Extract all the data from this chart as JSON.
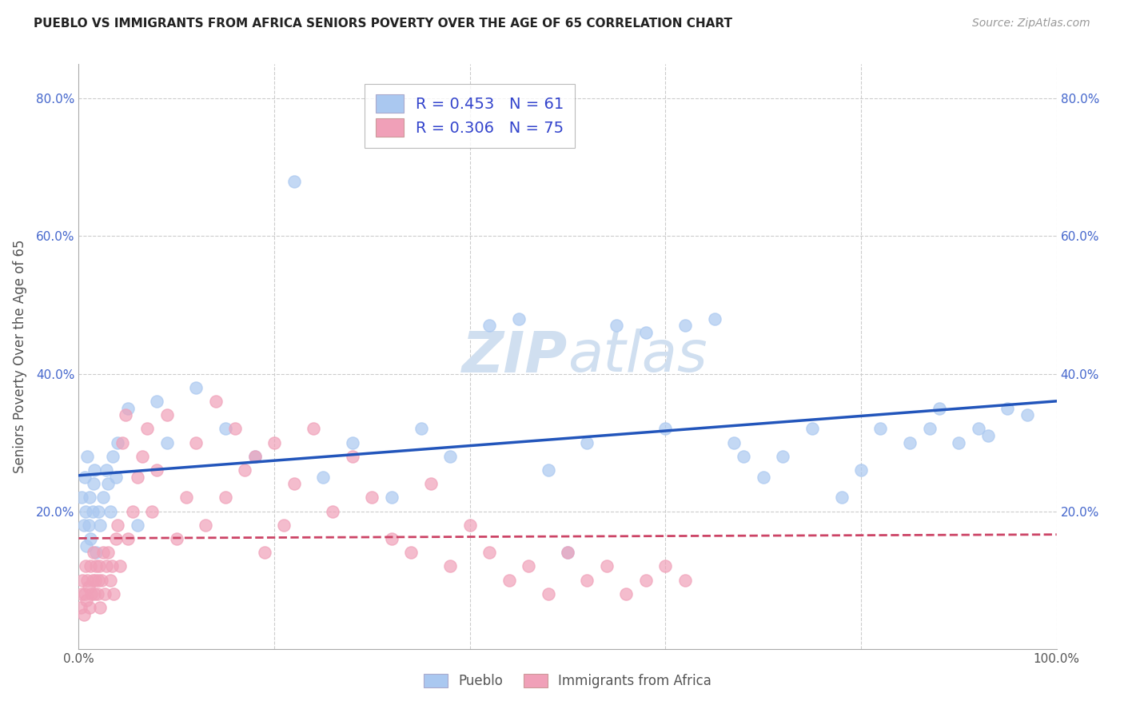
{
  "title": "PUEBLO VS IMMIGRANTS FROM AFRICA SENIORS POVERTY OVER THE AGE OF 65 CORRELATION CHART",
  "source": "Source: ZipAtlas.com",
  "ylabel": "Seniors Poverty Over the Age of 65",
  "xlim": [
    0,
    1.0
  ],
  "ylim": [
    0,
    0.85
  ],
  "series1_color": "#aac8f0",
  "series2_color": "#f0a0b8",
  "series1_name": "Pueblo",
  "series2_name": "Immigrants from Africa",
  "series1_R": 0.453,
  "series1_N": 61,
  "series2_R": 0.306,
  "series2_N": 75,
  "series1_line_color": "#2255bb",
  "series2_line_color": "#cc4466",
  "background_color": "#ffffff",
  "grid_color": "#cccccc",
  "title_color": "#222222",
  "legend_text_color": "#3344cc",
  "tick_color": "#4466cc",
  "watermark_color": "#d0dff0",
  "series1_x": [
    0.003,
    0.005,
    0.006,
    0.007,
    0.008,
    0.009,
    0.01,
    0.011,
    0.012,
    0.014,
    0.015,
    0.016,
    0.018,
    0.02,
    0.022,
    0.025,
    0.028,
    0.03,
    0.032,
    0.035,
    0.038,
    0.04,
    0.05,
    0.06,
    0.08,
    0.09,
    0.12,
    0.15,
    0.18,
    0.22,
    0.25,
    0.28,
    0.32,
    0.35,
    0.38,
    0.42,
    0.45,
    0.48,
    0.5,
    0.52,
    0.55,
    0.58,
    0.6,
    0.62,
    0.65,
    0.67,
    0.68,
    0.7,
    0.72,
    0.75,
    0.78,
    0.8,
    0.82,
    0.85,
    0.87,
    0.88,
    0.9,
    0.92,
    0.93,
    0.95,
    0.97
  ],
  "series1_y": [
    0.22,
    0.18,
    0.25,
    0.2,
    0.15,
    0.28,
    0.18,
    0.22,
    0.16,
    0.2,
    0.24,
    0.26,
    0.14,
    0.2,
    0.18,
    0.22,
    0.26,
    0.24,
    0.2,
    0.28,
    0.25,
    0.3,
    0.35,
    0.18,
    0.36,
    0.3,
    0.38,
    0.32,
    0.28,
    0.68,
    0.25,
    0.3,
    0.22,
    0.32,
    0.28,
    0.47,
    0.48,
    0.26,
    0.14,
    0.3,
    0.47,
    0.46,
    0.32,
    0.47,
    0.48,
    0.3,
    0.28,
    0.25,
    0.28,
    0.32,
    0.22,
    0.26,
    0.32,
    0.3,
    0.32,
    0.35,
    0.3,
    0.32,
    0.31,
    0.35,
    0.34
  ],
  "series2_x": [
    0.002,
    0.003,
    0.004,
    0.005,
    0.006,
    0.007,
    0.008,
    0.009,
    0.01,
    0.011,
    0.012,
    0.013,
    0.014,
    0.015,
    0.016,
    0.017,
    0.018,
    0.019,
    0.02,
    0.021,
    0.022,
    0.023,
    0.025,
    0.027,
    0.028,
    0.03,
    0.032,
    0.034,
    0.036,
    0.038,
    0.04,
    0.042,
    0.045,
    0.048,
    0.05,
    0.055,
    0.06,
    0.065,
    0.07,
    0.075,
    0.08,
    0.09,
    0.1,
    0.11,
    0.12,
    0.13,
    0.14,
    0.15,
    0.16,
    0.17,
    0.18,
    0.19,
    0.2,
    0.21,
    0.22,
    0.24,
    0.26,
    0.28,
    0.3,
    0.32,
    0.34,
    0.36,
    0.38,
    0.4,
    0.42,
    0.44,
    0.46,
    0.48,
    0.5,
    0.52,
    0.54,
    0.56,
    0.58,
    0.6,
    0.62
  ],
  "series2_y": [
    0.06,
    0.08,
    0.1,
    0.05,
    0.08,
    0.12,
    0.07,
    0.1,
    0.09,
    0.06,
    0.12,
    0.08,
    0.1,
    0.14,
    0.08,
    0.1,
    0.12,
    0.08,
    0.1,
    0.12,
    0.06,
    0.1,
    0.14,
    0.08,
    0.12,
    0.14,
    0.1,
    0.12,
    0.08,
    0.16,
    0.18,
    0.12,
    0.3,
    0.34,
    0.16,
    0.2,
    0.25,
    0.28,
    0.32,
    0.2,
    0.26,
    0.34,
    0.16,
    0.22,
    0.3,
    0.18,
    0.36,
    0.22,
    0.32,
    0.26,
    0.28,
    0.14,
    0.3,
    0.18,
    0.24,
    0.32,
    0.2,
    0.28,
    0.22,
    0.16,
    0.14,
    0.24,
    0.12,
    0.18,
    0.14,
    0.1,
    0.12,
    0.08,
    0.14,
    0.1,
    0.12,
    0.08,
    0.1,
    0.12,
    0.1
  ]
}
